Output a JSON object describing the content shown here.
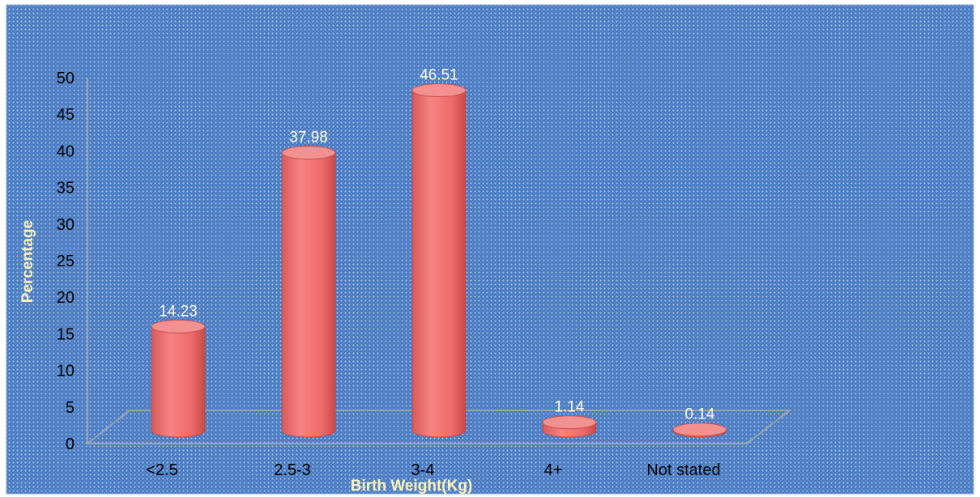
{
  "chart_data": {
    "type": "bar",
    "title": "",
    "xlabel": "Birth Weight(Kg)",
    "ylabel": "Percentage",
    "categories": [
      "<2.5",
      "2.5-3",
      "3-4",
      "4+",
      "Not stated"
    ],
    "values": [
      14.23,
      37.98,
      46.51,
      1.14,
      0.14
    ],
    "value_labels": [
      "14.23",
      "37.98",
      "46.51",
      "1.14",
      "0.14"
    ],
    "ylim": [
      0,
      50
    ],
    "yticks": [
      "0",
      "5",
      "10",
      "15",
      "20",
      "25",
      "30",
      "35",
      "40",
      "45",
      "50"
    ],
    "grid": false,
    "style": "3d-cylinder",
    "colors": {
      "background": "#4a7fc4",
      "bar": "#f07070",
      "bar_dark": "#c84848",
      "bar_top": "#f39090",
      "data_label": "#fffbe0",
      "axis_title": "#fff3b8"
    }
  }
}
